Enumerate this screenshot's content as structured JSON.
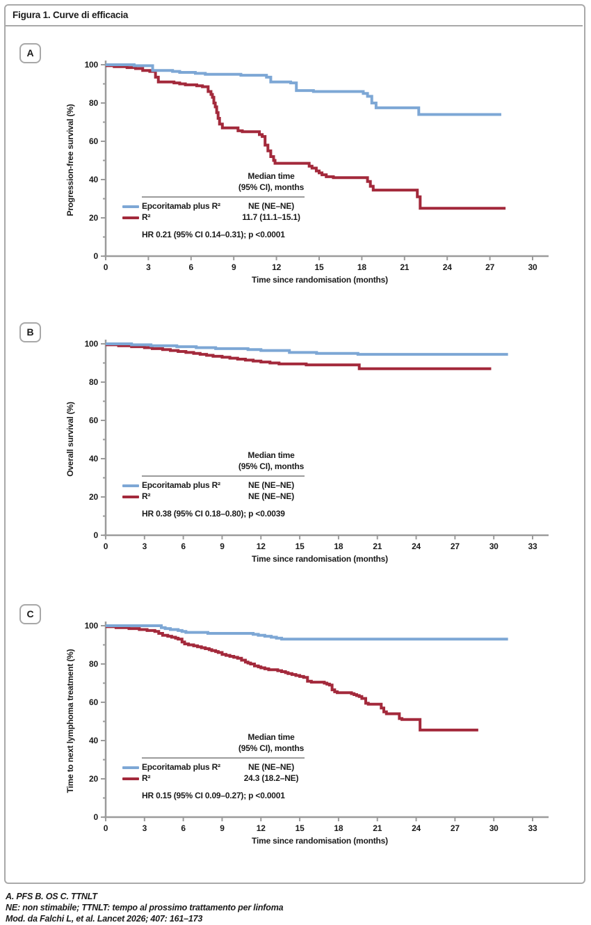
{
  "figure_title": "Figura 1. Curve di efficacia",
  "colors": {
    "epcoritamab_blue": "#7da7d5",
    "r2_red": "#a3293b",
    "axis_gray": "#9b9b9b",
    "text_black": "#1a1a1a"
  },
  "footer": {
    "line1": "A. PFS B. OS C. TTNLT",
    "line2": "NE: non stimabile; TTNLT: tempo al prossimo trattamento per linfoma",
    "line3": "Mod. da Falchi L, et al. Lancet 2026; 407: 161–173"
  },
  "chart_data": [
    {
      "type": "line",
      "panel_label": "A",
      "ylabel": "Progression-free survival (%)",
      "xlabel": "Time since randomisation (months)",
      "ylim": [
        0,
        100
      ],
      "yticks": [
        0,
        20,
        40,
        60,
        80,
        100
      ],
      "xticks": [
        0,
        3,
        6,
        9,
        12,
        15,
        18,
        21,
        24,
        27,
        30
      ],
      "grid": false,
      "legend": {
        "header_line1": "Median time",
        "header_line2": "(95% CI), months",
        "entries": [
          {
            "label": "Epcoritamab plus R²",
            "median": "NE (NE–NE)"
          },
          {
            "label": "R²",
            "median": "11.7 (11.1–15.1)"
          }
        ],
        "hr_text": "HR 0.21 (95% CI 0.14–0.31); p <0.0001"
      },
      "series": [
        {
          "name": "Epcoritamab plus R²",
          "color": "#7da7d5",
          "end_month": 27.8,
          "steps": [
            [
              0,
              100
            ],
            [
              2,
              99.5
            ],
            [
              3.3,
              97
            ],
            [
              4.7,
              96.5
            ],
            [
              5.2,
              96
            ],
            [
              6.3,
              95.5
            ],
            [
              7,
              95
            ],
            [
              9.5,
              94.5
            ],
            [
              11.3,
              93.5
            ],
            [
              11.6,
              91
            ],
            [
              13,
              90.5
            ],
            [
              13.4,
              86.5
            ],
            [
              14.6,
              86
            ],
            [
              18.1,
              85
            ],
            [
              18.4,
              83.5
            ],
            [
              18.7,
              80
            ],
            [
              19,
              77.5
            ],
            [
              22,
              74
            ]
          ]
        },
        {
          "name": "R²",
          "color": "#a3293b",
          "end_month": 28.1,
          "steps": [
            [
              0,
              99.5
            ],
            [
              0.6,
              99
            ],
            [
              1.5,
              98.5
            ],
            [
              2.1,
              98
            ],
            [
              2.6,
              97
            ],
            [
              3.1,
              96.5
            ],
            [
              3.5,
              93.5
            ],
            [
              3.7,
              91
            ],
            [
              4.8,
              90.5
            ],
            [
              5.2,
              90
            ],
            [
              5.6,
              89.5
            ],
            [
              6.4,
              89
            ],
            [
              6.8,
              88.5
            ],
            [
              7.2,
              86
            ],
            [
              7.4,
              84.5
            ],
            [
              7.5,
              83
            ],
            [
              7.6,
              80
            ],
            [
              7.7,
              78
            ],
            [
              7.8,
              75
            ],
            [
              7.9,
              72
            ],
            [
              8,
              69
            ],
            [
              8.2,
              67
            ],
            [
              9.3,
              65.5
            ],
            [
              9.6,
              65
            ],
            [
              10.8,
              63.5
            ],
            [
              11,
              62.5
            ],
            [
              11.2,
              58
            ],
            [
              11.4,
              55
            ],
            [
              11.6,
              52
            ],
            [
              11.8,
              50
            ],
            [
              11.9,
              48.5
            ],
            [
              14.3,
              47
            ],
            [
              14.5,
              46
            ],
            [
              14.8,
              44.5
            ],
            [
              15,
              43.5
            ],
            [
              15.2,
              42.5
            ],
            [
              15.5,
              41.5
            ],
            [
              16,
              41
            ],
            [
              18.4,
              39
            ],
            [
              18.6,
              36.5
            ],
            [
              18.8,
              34.5
            ],
            [
              21.9,
              31
            ],
            [
              22.1,
              25
            ]
          ]
        }
      ]
    },
    {
      "type": "line",
      "panel_label": "B",
      "ylabel": "Overall survival (%)",
      "xlabel": "Time since randomisation (months)",
      "ylim": [
        0,
        100
      ],
      "yticks": [
        0,
        20,
        40,
        60,
        80,
        100
      ],
      "xticks": [
        0,
        3,
        6,
        9,
        12,
        15,
        18,
        21,
        24,
        27,
        30,
        33
      ],
      "grid": false,
      "legend": {
        "header_line1": "Median time",
        "header_line2": "(95% CI), months",
        "entries": [
          {
            "label": "Epcoritamab plus R²",
            "median": "NE (NE–NE)"
          },
          {
            "label": "R²",
            "median": "NE (NE–NE)"
          }
        ],
        "hr_text": "HR 0.38 (95% CI 0.18–0.80); p <0.0039"
      },
      "series": [
        {
          "name": "Epcoritamab plus R²",
          "color": "#7da7d5",
          "end_month": 31.1,
          "steps": [
            [
              0,
              100
            ],
            [
              2,
              99.5
            ],
            [
              3.5,
              99
            ],
            [
              5.5,
              98.5
            ],
            [
              7,
              98
            ],
            [
              8.5,
              97.5
            ],
            [
              11,
              97
            ],
            [
              12,
              96.5
            ],
            [
              14.2,
              95.5
            ],
            [
              16.3,
              95
            ],
            [
              19.5,
              94.5
            ]
          ]
        },
        {
          "name": "R²",
          "color": "#a3293b",
          "end_month": 29.8,
          "steps": [
            [
              0,
              99.5
            ],
            [
              1,
              99
            ],
            [
              2,
              98.5
            ],
            [
              3,
              98
            ],
            [
              3.6,
              97.5
            ],
            [
              4.4,
              97
            ],
            [
              5,
              96.5
            ],
            [
              5.6,
              96
            ],
            [
              6.2,
              95.5
            ],
            [
              6.8,
              95
            ],
            [
              7.3,
              94.5
            ],
            [
              7.8,
              94
            ],
            [
              8.3,
              93.5
            ],
            [
              9,
              93
            ],
            [
              9.6,
              92.5
            ],
            [
              10.2,
              92
            ],
            [
              10.8,
              91.5
            ],
            [
              11.4,
              91
            ],
            [
              12,
              90.5
            ],
            [
              12.7,
              90
            ],
            [
              13.4,
              89.5
            ],
            [
              15.5,
              89
            ],
            [
              19.6,
              87
            ]
          ]
        }
      ]
    },
    {
      "type": "line",
      "panel_label": "C",
      "ylabel": "Time to next lymphoma treatment (%)",
      "xlabel": "Time since randomisation (months)",
      "ylim": [
        0,
        100
      ],
      "yticks": [
        0,
        20,
        40,
        60,
        80,
        100
      ],
      "xticks": [
        0,
        3,
        6,
        9,
        12,
        15,
        18,
        21,
        24,
        27,
        30,
        33
      ],
      "grid": false,
      "legend": {
        "header_line1": "Median time",
        "header_line2": "(95% CI), months",
        "entries": [
          {
            "label": "Epcoritamab plus R²",
            "median": "NE (NE–NE)"
          },
          {
            "label": "R²",
            "median": "24.3 (18.2–NE)"
          }
        ],
        "hr_text": "HR 0.15 (95% CI 0.09–0.27); p <0.0001"
      },
      "series": [
        {
          "name": "Epcoritamab plus R²",
          "color": "#7da7d5",
          "end_month": 31.1,
          "steps": [
            [
              0,
              100
            ],
            [
              4.3,
              99
            ],
            [
              4.6,
              98.5
            ],
            [
              5,
              98
            ],
            [
              5.6,
              97.5
            ],
            [
              5.9,
              97
            ],
            [
              6.2,
              96.5
            ],
            [
              7.9,
              96
            ],
            [
              11.4,
              95.5
            ],
            [
              11.8,
              95
            ],
            [
              12.3,
              94.5
            ],
            [
              12.8,
              94
            ],
            [
              13.2,
              93.5
            ],
            [
              13.6,
              93
            ]
          ]
        },
        {
          "name": "R²",
          "color": "#a3293b",
          "end_month": 28.8,
          "steps": [
            [
              0,
              99.5
            ],
            [
              0.8,
              99
            ],
            [
              1.8,
              98.5
            ],
            [
              2.6,
              98
            ],
            [
              3.2,
              97.5
            ],
            [
              3.8,
              97
            ],
            [
              4.1,
              96
            ],
            [
              4.4,
              95
            ],
            [
              4.8,
              94.5
            ],
            [
              5.1,
              94
            ],
            [
              5.4,
              93.5
            ],
            [
              5.6,
              93
            ],
            [
              5.9,
              91.5
            ],
            [
              6.1,
              90.5
            ],
            [
              6.4,
              90
            ],
            [
              6.8,
              89.5
            ],
            [
              7.1,
              89
            ],
            [
              7.4,
              88.5
            ],
            [
              7.7,
              88
            ],
            [
              8,
              87.5
            ],
            [
              8.2,
              87
            ],
            [
              8.5,
              86.5
            ],
            [
              8.7,
              86
            ],
            [
              9,
              85
            ],
            [
              9.3,
              84.5
            ],
            [
              9.6,
              84
            ],
            [
              9.9,
              83.5
            ],
            [
              10.2,
              83
            ],
            [
              10.5,
              82
            ],
            [
              10.8,
              81
            ],
            [
              11,
              80.5
            ],
            [
              11.2,
              80
            ],
            [
              11.5,
              79
            ],
            [
              11.8,
              78.5
            ],
            [
              12,
              78
            ],
            [
              12.3,
              77.5
            ],
            [
              12.6,
              77
            ],
            [
              13.3,
              76.5
            ],
            [
              13.6,
              76
            ],
            [
              13.9,
              75.5
            ],
            [
              14.1,
              75
            ],
            [
              14.4,
              74.5
            ],
            [
              14.7,
              74
            ],
            [
              15,
              73.5
            ],
            [
              15.3,
              73
            ],
            [
              15.6,
              71
            ],
            [
              15.9,
              70.5
            ],
            [
              16.9,
              70
            ],
            [
              17.1,
              69.5
            ],
            [
              17.3,
              69
            ],
            [
              17.5,
              66.5
            ],
            [
              17.7,
              65.5
            ],
            [
              17.9,
              65
            ],
            [
              19,
              64.5
            ],
            [
              19.2,
              64
            ],
            [
              19.4,
              63.5
            ],
            [
              19.6,
              63
            ],
            [
              19.8,
              62
            ],
            [
              20.1,
              59.5
            ],
            [
              20.3,
              59
            ],
            [
              21.3,
              57
            ],
            [
              21.5,
              55
            ],
            [
              21.7,
              54
            ],
            [
              22.7,
              51.5
            ],
            [
              22.9,
              51
            ],
            [
              24.3,
              45.5
            ]
          ]
        }
      ]
    }
  ]
}
